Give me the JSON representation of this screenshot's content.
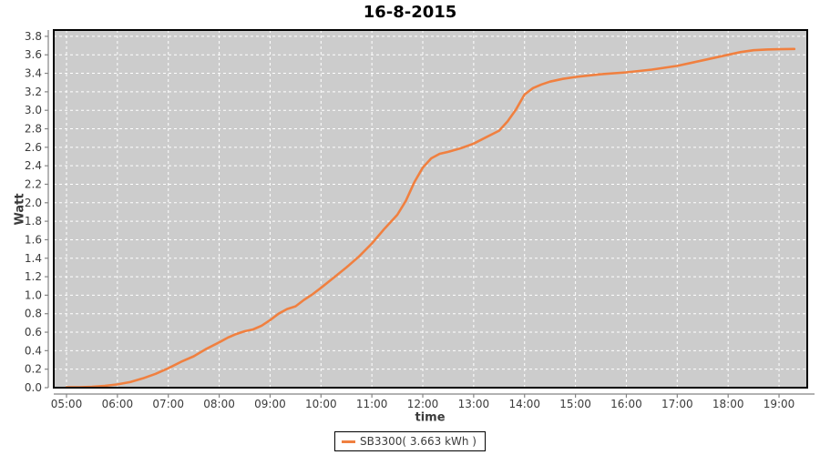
{
  "chart": {
    "title": "16-8-2015",
    "x_axis": {
      "label": "time",
      "ticks": [
        "05:00",
        "06:00",
        "07:00",
        "08:00",
        "09:00",
        "10:00",
        "11:00",
        "12:00",
        "13:00",
        "14:00",
        "15:00",
        "16:00",
        "17:00",
        "18:00",
        "19:00"
      ]
    },
    "y_axis": {
      "label": "Watt",
      "ticks": [
        "0.0",
        "0.2",
        "0.4",
        "0.6",
        "0.8",
        "1.0",
        "1.2",
        "1.4",
        "1.6",
        "1.8",
        "2.0",
        "2.2",
        "2.4",
        "2.6",
        "2.8",
        "3.0",
        "3.2",
        "3.4",
        "3.6",
        "3.8"
      ]
    },
    "legend": {
      "label": "SB3300( 3.663 kWh )"
    }
  },
  "colors": {
    "series_line": "#F08040",
    "plot_background": "#CCCCCC",
    "gridline": "#FFFFFF",
    "plot_border": "#000000",
    "axis_line": "#848484",
    "tick_text": "#3b3b3b",
    "title_text": "#000000"
  },
  "chart_data": {
    "type": "line",
    "title": "16-8-2015",
    "xlabel": "time",
    "ylabel": "Watt",
    "ylim": [
      0.0,
      3.87
    ],
    "y_tick_step": 0.2,
    "x_tick_step": "1 hour",
    "x_visible_range": [
      "04:45",
      "19:33"
    ],
    "grid": true,
    "legend_position": "bottom-center",
    "total_kwh": 3.663,
    "series": [
      {
        "name": "SB3300( 3.663 kWh )",
        "color": "#F08040",
        "x": [
          "05:00",
          "05:15",
          "05:30",
          "05:45",
          "06:00",
          "06:15",
          "06:30",
          "06:45",
          "07:00",
          "07:15",
          "07:30",
          "07:45",
          "08:00",
          "08:10",
          "08:20",
          "08:30",
          "08:40",
          "08:50",
          "09:00",
          "09:10",
          "09:20",
          "09:30",
          "09:40",
          "09:50",
          "10:00",
          "10:15",
          "10:30",
          "10:45",
          "11:00",
          "11:15",
          "11:30",
          "11:40",
          "11:50",
          "12:00",
          "12:10",
          "12:20",
          "12:30",
          "12:45",
          "13:00",
          "13:15",
          "13:30",
          "13:40",
          "13:50",
          "14:00",
          "14:10",
          "14:20",
          "14:30",
          "14:45",
          "15:00",
          "15:30",
          "16:00",
          "16:30",
          "17:00",
          "17:30",
          "18:00",
          "18:15",
          "18:30",
          "18:45",
          "19:00",
          "19:18"
        ],
        "y": [
          0.005,
          0.005,
          0.01,
          0.02,
          0.035,
          0.06,
          0.1,
          0.15,
          0.21,
          0.28,
          0.34,
          0.42,
          0.49,
          0.54,
          0.58,
          0.61,
          0.63,
          0.67,
          0.73,
          0.8,
          0.85,
          0.88,
          0.95,
          1.01,
          1.08,
          1.19,
          1.3,
          1.42,
          1.56,
          1.72,
          1.87,
          2.02,
          2.22,
          2.38,
          2.48,
          2.53,
          2.55,
          2.59,
          2.64,
          2.71,
          2.78,
          2.88,
          3.01,
          3.17,
          3.24,
          3.28,
          3.31,
          3.34,
          3.36,
          3.39,
          3.41,
          3.44,
          3.48,
          3.54,
          3.6,
          3.63,
          3.65,
          3.657,
          3.66,
          3.663
        ]
      }
    ]
  }
}
